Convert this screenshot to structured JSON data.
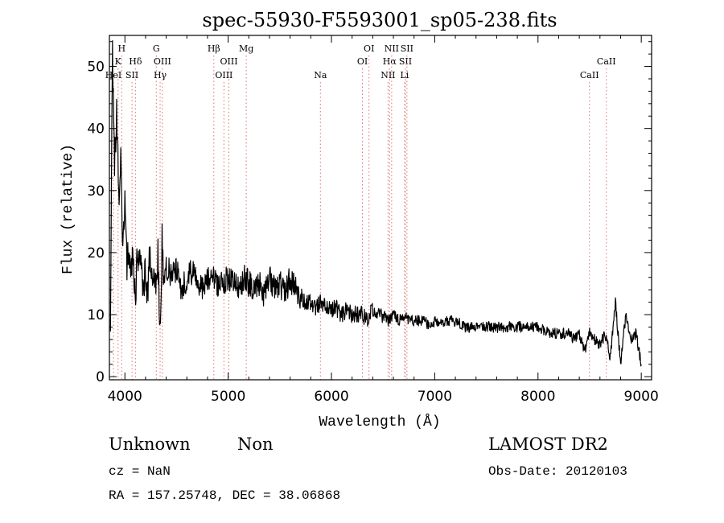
{
  "chart_data": {
    "type": "line",
    "title": "spec-55930-F5593001_sp05-238.fits",
    "xlabel": "Wavelength (Å)",
    "ylabel": "Flux (relative)",
    "xlim": [
      3850,
      9100
    ],
    "ylim": [
      -0.5,
      55
    ],
    "x_ticks": [
      4000,
      5000,
      6000,
      7000,
      8000,
      9000
    ],
    "y_ticks": [
      0,
      10,
      20,
      30,
      40,
      50
    ],
    "grid": false,
    "series": [
      {
        "color": "#000000",
        "x": [
          3860,
          3880,
          3900,
          3920,
          3940,
          3960,
          3980,
          4000,
          4020,
          4040,
          4060,
          4080,
          4100,
          4120,
          4140,
          4160,
          4180,
          4200,
          4220,
          4240,
          4260,
          4280,
          4300,
          4320,
          4340,
          4360,
          4380,
          4400,
          4450,
          4500,
          4550,
          4600,
          4650,
          4700,
          4750,
          4800,
          4850,
          4900,
          4950,
          5000,
          5050,
          5100,
          5150,
          5200,
          5250,
          5300,
          5350,
          5400,
          5450,
          5500,
          5550,
          5600,
          5650,
          5700,
          5750,
          5800,
          5850,
          5900,
          5950,
          6000,
          6050,
          6100,
          6150,
          6200,
          6250,
          6300,
          6350,
          6400,
          6450,
          6500,
          6550,
          6600,
          6650,
          6700,
          6750,
          6800,
          6850,
          6900,
          6950,
          7000,
          7100,
          7200,
          7300,
          7400,
          7500,
          7600,
          7700,
          7800,
          7900,
          8000,
          8100,
          8200,
          8300,
          8350,
          8400,
          8450,
          8500,
          8550,
          8600,
          8650,
          8700,
          8750,
          8800,
          8850,
          8900,
          8950,
          9000
        ],
        "y": [
          10,
          52,
          35,
          42,
          30,
          34,
          22,
          28,
          18,
          22,
          15,
          20,
          11,
          21,
          17,
          19,
          12,
          18,
          13,
          20,
          15,
          17,
          14,
          19,
          6,
          22,
          15,
          18,
          16,
          17,
          14,
          16,
          17,
          15,
          14,
          16,
          17,
          14,
          15,
          16,
          15,
          14,
          16,
          15,
          14,
          15,
          13,
          16,
          14,
          15,
          13,
          16,
          14,
          13,
          12,
          12,
          11,
          12,
          11,
          11,
          11,
          10,
          11,
          10,
          10,
          10,
          9,
          11,
          10,
          10,
          9,
          10,
          9,
          10,
          9,
          9,
          9,
          9,
          8,
          9,
          9,
          9,
          8,
          8,
          8,
          8,
          8,
          8,
          8,
          8,
          7,
          7,
          7,
          6,
          7,
          4,
          7,
          6,
          5,
          7,
          3,
          12,
          2,
          10,
          6,
          7,
          2
        ]
      }
    ],
    "line_markers": [
      {
        "label": "HeI",
        "wavelength": 3889,
        "row": 3
      },
      {
        "label": "K",
        "wavelength": 3934,
        "row": 2
      },
      {
        "label": "H",
        "wavelength": 3969,
        "row": 1
      },
      {
        "label": "SII",
        "wavelength": 4069,
        "row": 3
      },
      {
        "label": "Hδ",
        "wavelength": 4102,
        "row": 2
      },
      {
        "label": "G",
        "wavelength": 4304,
        "row": 1
      },
      {
        "label": "OIII",
        "wavelength": 4363,
        "row": 2
      },
      {
        "label": "Hγ",
        "wavelength": 4341,
        "row": 3
      },
      {
        "label": "Hβ",
        "wavelength": 4861,
        "row": 1
      },
      {
        "label": "OIII",
        "wavelength": 4959,
        "row": 3
      },
      {
        "label": "OIII",
        "wavelength": 5007,
        "row": 2
      },
      {
        "label": "Mg",
        "wavelength": 5175,
        "row": 1
      },
      {
        "label": "Na",
        "wavelength": 5893,
        "row": 3
      },
      {
        "label": "OI",
        "wavelength": 6300,
        "row": 2
      },
      {
        "label": "OI",
        "wavelength": 6364,
        "row": 1
      },
      {
        "label": "NII",
        "wavelength": 6548,
        "row": 3
      },
      {
        "label": "Hα",
        "wavelength": 6563,
        "row": 2
      },
      {
        "label": "NII",
        "wavelength": 6583,
        "row": 1
      },
      {
        "label": "SII",
        "wavelength": 6716,
        "row": 2
      },
      {
        "label": "SII",
        "wavelength": 6731,
        "row": 1
      },
      {
        "label": "Li",
        "wavelength": 6708,
        "row": 3
      },
      {
        "label": "CaII",
        "wavelength": 8498,
        "row": 3
      },
      {
        "label": "CaII",
        "wavelength": 8662,
        "row": 2
      }
    ],
    "marker_color": "#e07070"
  },
  "info": {
    "class_label": "Unknown",
    "subclass_label": "Non",
    "survey_label": "LAMOST DR2",
    "cz_text": "cz = NaN",
    "obs_date_text": "Obs-Date: 20120103",
    "coords_text": "RA = 157.25748, DEC =  38.06868"
  }
}
